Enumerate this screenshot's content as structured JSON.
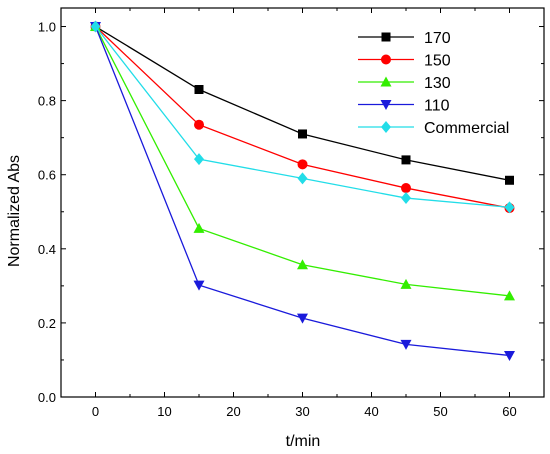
{
  "chart_data": {
    "type": "line",
    "title": "",
    "xlabel": "t/min",
    "ylabel": "Normalized Abs",
    "x": [
      0,
      15,
      30,
      45,
      60
    ],
    "xlim": [
      -5,
      65
    ],
    "ylim": [
      0.0,
      1.05
    ],
    "x_ticks": [
      "0",
      "10",
      "20",
      "30",
      "40",
      "50",
      "60"
    ],
    "y_ticks": [
      "0.0",
      "0.2",
      "0.4",
      "0.6",
      "0.8",
      "1.0"
    ],
    "grid": false,
    "legend_position": "top-right",
    "series": [
      {
        "name": "170",
        "color": "#000000",
        "marker": "square",
        "values": [
          1.0,
          0.83,
          0.71,
          0.64,
          0.585
        ]
      },
      {
        "name": "150",
        "color": "#ff0000",
        "marker": "circle",
        "values": [
          1.0,
          0.735,
          0.628,
          0.564,
          0.51
        ]
      },
      {
        "name": "130",
        "color": "#33ee00",
        "marker": "triangle-up",
        "values": [
          1.0,
          0.455,
          0.357,
          0.304,
          0.273
        ]
      },
      {
        "name": "110",
        "color": "#1a1adb",
        "marker": "triangle-down",
        "values": [
          1.0,
          0.302,
          0.213,
          0.142,
          0.112
        ]
      },
      {
        "name": "Commercial",
        "color": "#22dde8",
        "marker": "diamond",
        "values": [
          1.0,
          0.642,
          0.59,
          0.537,
          0.512
        ]
      }
    ]
  }
}
